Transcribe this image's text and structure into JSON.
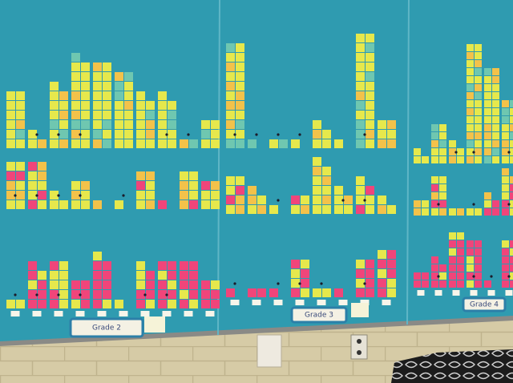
{
  "labels": [
    "Grade 2",
    "Grade 3",
    "Grade 4"
  ]
}
